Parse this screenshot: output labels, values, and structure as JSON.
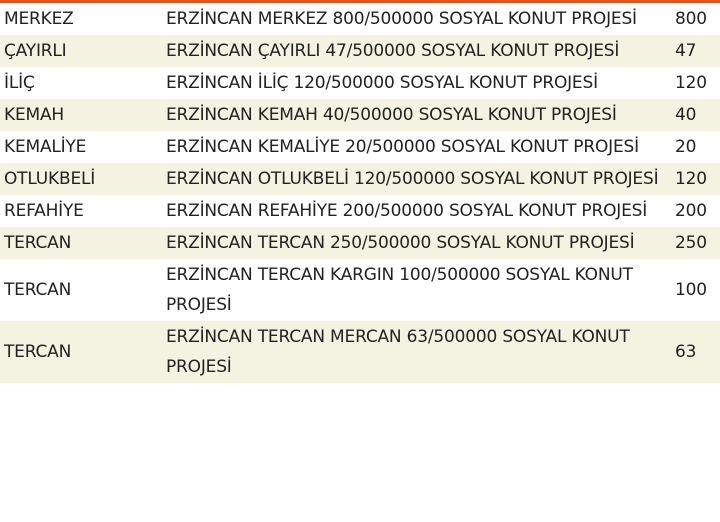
{
  "accent_color": "#e8501c",
  "stripe_color": "#f4f3e2",
  "rows": [
    {
      "district": "MERKEZ",
      "project": "ERZİNCAN MERKEZ 800/500000 SOSYAL KONUT PROJESİ",
      "count": "800"
    },
    {
      "district": "ÇAYIRLI",
      "project": "ERZİNCAN ÇAYIRLI 47/500000 SOSYAL KONUT PROJESİ",
      "count": "47"
    },
    {
      "district": "İLİÇ",
      "project": "ERZİNCAN İLİÇ 120/500000 SOSYAL KONUT PROJESİ",
      "count": "120"
    },
    {
      "district": "KEMAH",
      "project": "ERZİNCAN KEMAH 40/500000 SOSYAL KONUT PROJESİ",
      "count": "40"
    },
    {
      "district": "KEMALİYE",
      "project": "ERZİNCAN KEMALİYE 20/500000 SOSYAL KONUT PROJESİ",
      "count": "20"
    },
    {
      "district": "OTLUKBELİ",
      "project": "ERZİNCAN OTLUKBELİ 120/500000 SOSYAL KONUT PROJESİ",
      "count": "120"
    },
    {
      "district": "REFAHİYE",
      "project": "ERZİNCAN REFAHİYE 200/500000 SOSYAL KONUT PROJESİ",
      "count": "200"
    },
    {
      "district": "TERCAN",
      "project": "ERZİNCAN TERCAN 250/500000 SOSYAL KONUT PROJESİ",
      "count": "250"
    },
    {
      "district": "TERCAN",
      "project": "ERZİNCAN TERCAN KARGIN 100/500000 SOSYAL KONUT PROJESİ",
      "count": "100"
    },
    {
      "district": "TERCAN",
      "project": "ERZİNCAN TERCAN MERCAN 63/500000 SOSYAL KONUT PROJESİ",
      "count": "63"
    }
  ]
}
